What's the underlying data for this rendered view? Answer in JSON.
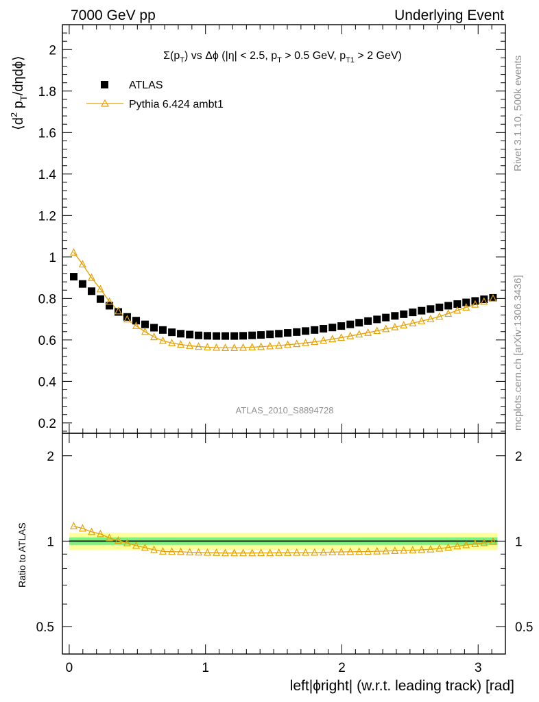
{
  "header": {
    "left": "7000 GeV pp",
    "right": "Underlying Event"
  },
  "side_labels": {
    "top": "Rivet 3.1.10,  500k events",
    "bottom": "mcplots.cern.ch [arXiv:1306.3436]"
  },
  "colors": {
    "data": "#000000",
    "mc": "#e8a000",
    "band_inner": "#7ff07f",
    "band_outer": "#ffff99"
  },
  "chart_data": [
    {
      "type": "scatter",
      "title": "Σ(pT) vs Δφ (|η| < 2.5, pT > 0.5 GeV, pT1 > 2 GeV)",
      "ylabel": "⟨d²pT/dηdφ⟩",
      "watermark": "ATLAS_2010_S8894728",
      "xlim": [
        -0.05,
        3.2
      ],
      "ylim": [
        0.15,
        2.12
      ],
      "xticks": [
        0,
        1,
        2,
        3
      ],
      "yticks": [
        0.2,
        0.4,
        0.6,
        0.8,
        1,
        1.2,
        1.4,
        1.6,
        1.8,
        2
      ],
      "ytick_labels": [
        "0.2",
        "0.4",
        "0.6",
        "0.8",
        "1",
        "1.2",
        "1.4",
        "1.6",
        "1.8",
        "2"
      ],
      "legend_position": "top-left",
      "legend": [
        "ATLAS",
        "Pythia 6.424 ambt1"
      ],
      "x": [
        0.033,
        0.098,
        0.164,
        0.229,
        0.295,
        0.36,
        0.425,
        0.491,
        0.556,
        0.622,
        0.687,
        0.753,
        0.818,
        0.884,
        0.949,
        1.014,
        1.08,
        1.145,
        1.211,
        1.276,
        1.342,
        1.407,
        1.473,
        1.538,
        1.603,
        1.669,
        1.734,
        1.8,
        1.865,
        1.931,
        1.996,
        2.062,
        2.127,
        2.192,
        2.258,
        2.323,
        2.389,
        2.454,
        2.52,
        2.585,
        2.651,
        2.716,
        2.781,
        2.847,
        2.912,
        2.978,
        3.043,
        3.109
      ],
      "series": [
        {
          "name": "ATLAS",
          "marker": "square",
          "values": [
            0.905,
            0.87,
            0.835,
            0.797,
            0.765,
            0.735,
            0.711,
            0.693,
            0.675,
            0.659,
            0.648,
            0.637,
            0.63,
            0.626,
            0.622,
            0.62,
            0.619,
            0.619,
            0.619,
            0.62,
            0.622,
            0.624,
            0.627,
            0.63,
            0.634,
            0.638,
            0.643,
            0.648,
            0.654,
            0.66,
            0.667,
            0.675,
            0.683,
            0.691,
            0.699,
            0.708,
            0.716,
            0.724,
            0.733,
            0.741,
            0.749,
            0.757,
            0.765,
            0.773,
            0.781,
            0.788,
            0.796,
            0.803
          ]
        },
        {
          "name": "Pythia 6.424 ambt1",
          "marker": "triangle",
          "values": [
            1.022,
            0.965,
            0.9,
            0.845,
            0.785,
            0.739,
            0.7,
            0.668,
            0.64,
            0.614,
            0.596,
            0.585,
            0.578,
            0.572,
            0.568,
            0.565,
            0.563,
            0.562,
            0.562,
            0.563,
            0.565,
            0.567,
            0.57,
            0.573,
            0.577,
            0.581,
            0.586,
            0.591,
            0.597,
            0.604,
            0.611,
            0.619,
            0.627,
            0.635,
            0.644,
            0.653,
            0.662,
            0.671,
            0.681,
            0.691,
            0.701,
            0.713,
            0.727,
            0.742,
            0.757,
            0.771,
            0.785,
            0.8
          ]
        }
      ]
    },
    {
      "type": "line",
      "ylabel": "Ratio to ATLAS",
      "ylim": [
        0.4,
        2.4
      ],
      "yscale": "log",
      "yticks": [
        0.5,
        1,
        2
      ],
      "ytick_labels": [
        "0.5",
        "1",
        "2"
      ],
      "xticks": [
        0,
        1,
        2,
        3
      ],
      "xtick_labels": [
        "0",
        "1",
        "2",
        "3"
      ],
      "xlabel": "left|ϕright| (w.r.t. leading track) [rad]",
      "band_inner": 0.03,
      "band_outer": 0.07,
      "series": [
        {
          "name": "Pythia 6.424 ambt1",
          "values": [
            1.129,
            1.109,
            1.078,
            1.06,
            1.026,
            1.005,
            0.985,
            0.964,
            0.948,
            0.932,
            0.92,
            0.918,
            0.917,
            0.914,
            0.913,
            0.911,
            0.91,
            0.908,
            0.908,
            0.908,
            0.908,
            0.909,
            0.909,
            0.91,
            0.91,
            0.911,
            0.911,
            0.912,
            0.913,
            0.915,
            0.916,
            0.917,
            0.918,
            0.919,
            0.921,
            0.922,
            0.925,
            0.927,
            0.929,
            0.932,
            0.936,
            0.942,
            0.95,
            0.96,
            0.969,
            0.978,
            0.986,
            0.996
          ]
        }
      ]
    }
  ]
}
